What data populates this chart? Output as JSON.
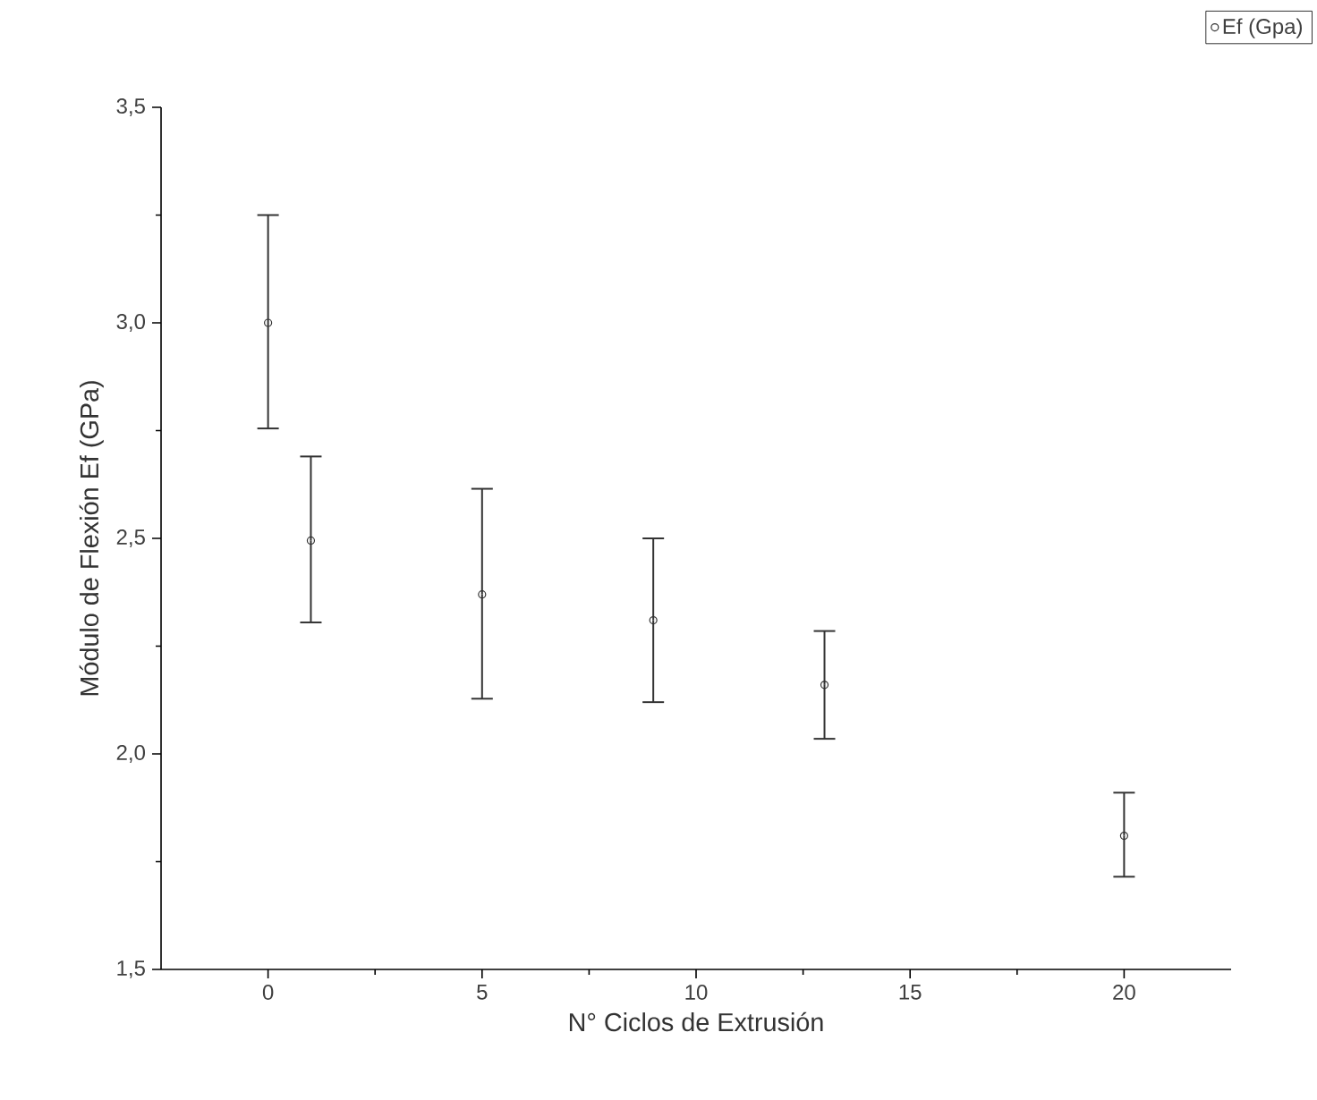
{
  "chart_data": {
    "type": "scatter",
    "xlabel": "N° Ciclos de Extrusión",
    "ylabel": "Módulo de Flexión Ef (GPa)",
    "x": [
      0,
      1,
      5,
      9,
      13,
      20
    ],
    "series": [
      {
        "name": "Ef (Gpa)",
        "color": "#333333",
        "values": [
          3.0,
          2.495,
          2.37,
          2.31,
          2.16,
          1.81
        ],
        "errors": [
          [
            2.755,
            3.25
          ],
          [
            2.305,
            2.69
          ],
          [
            2.128,
            2.615
          ],
          [
            2.12,
            2.5
          ],
          [
            2.035,
            2.285
          ],
          [
            1.715,
            1.91
          ]
        ]
      }
    ],
    "xlim": [
      -2.5,
      22.5
    ],
    "ylim": [
      1.5,
      3.5
    ],
    "xticks": [
      0,
      5,
      10,
      15,
      20
    ],
    "yticks": [
      {
        "value": 1.5,
        "label": "1,5"
      },
      {
        "value": 2.0,
        "label": "2,0"
      },
      {
        "value": 2.5,
        "label": "2,5"
      },
      {
        "value": 3.0,
        "label": "3,0"
      },
      {
        "value": 3.5,
        "label": "3,5"
      }
    ],
    "marker": "circle",
    "legend": "top right",
    "grid": false
  }
}
